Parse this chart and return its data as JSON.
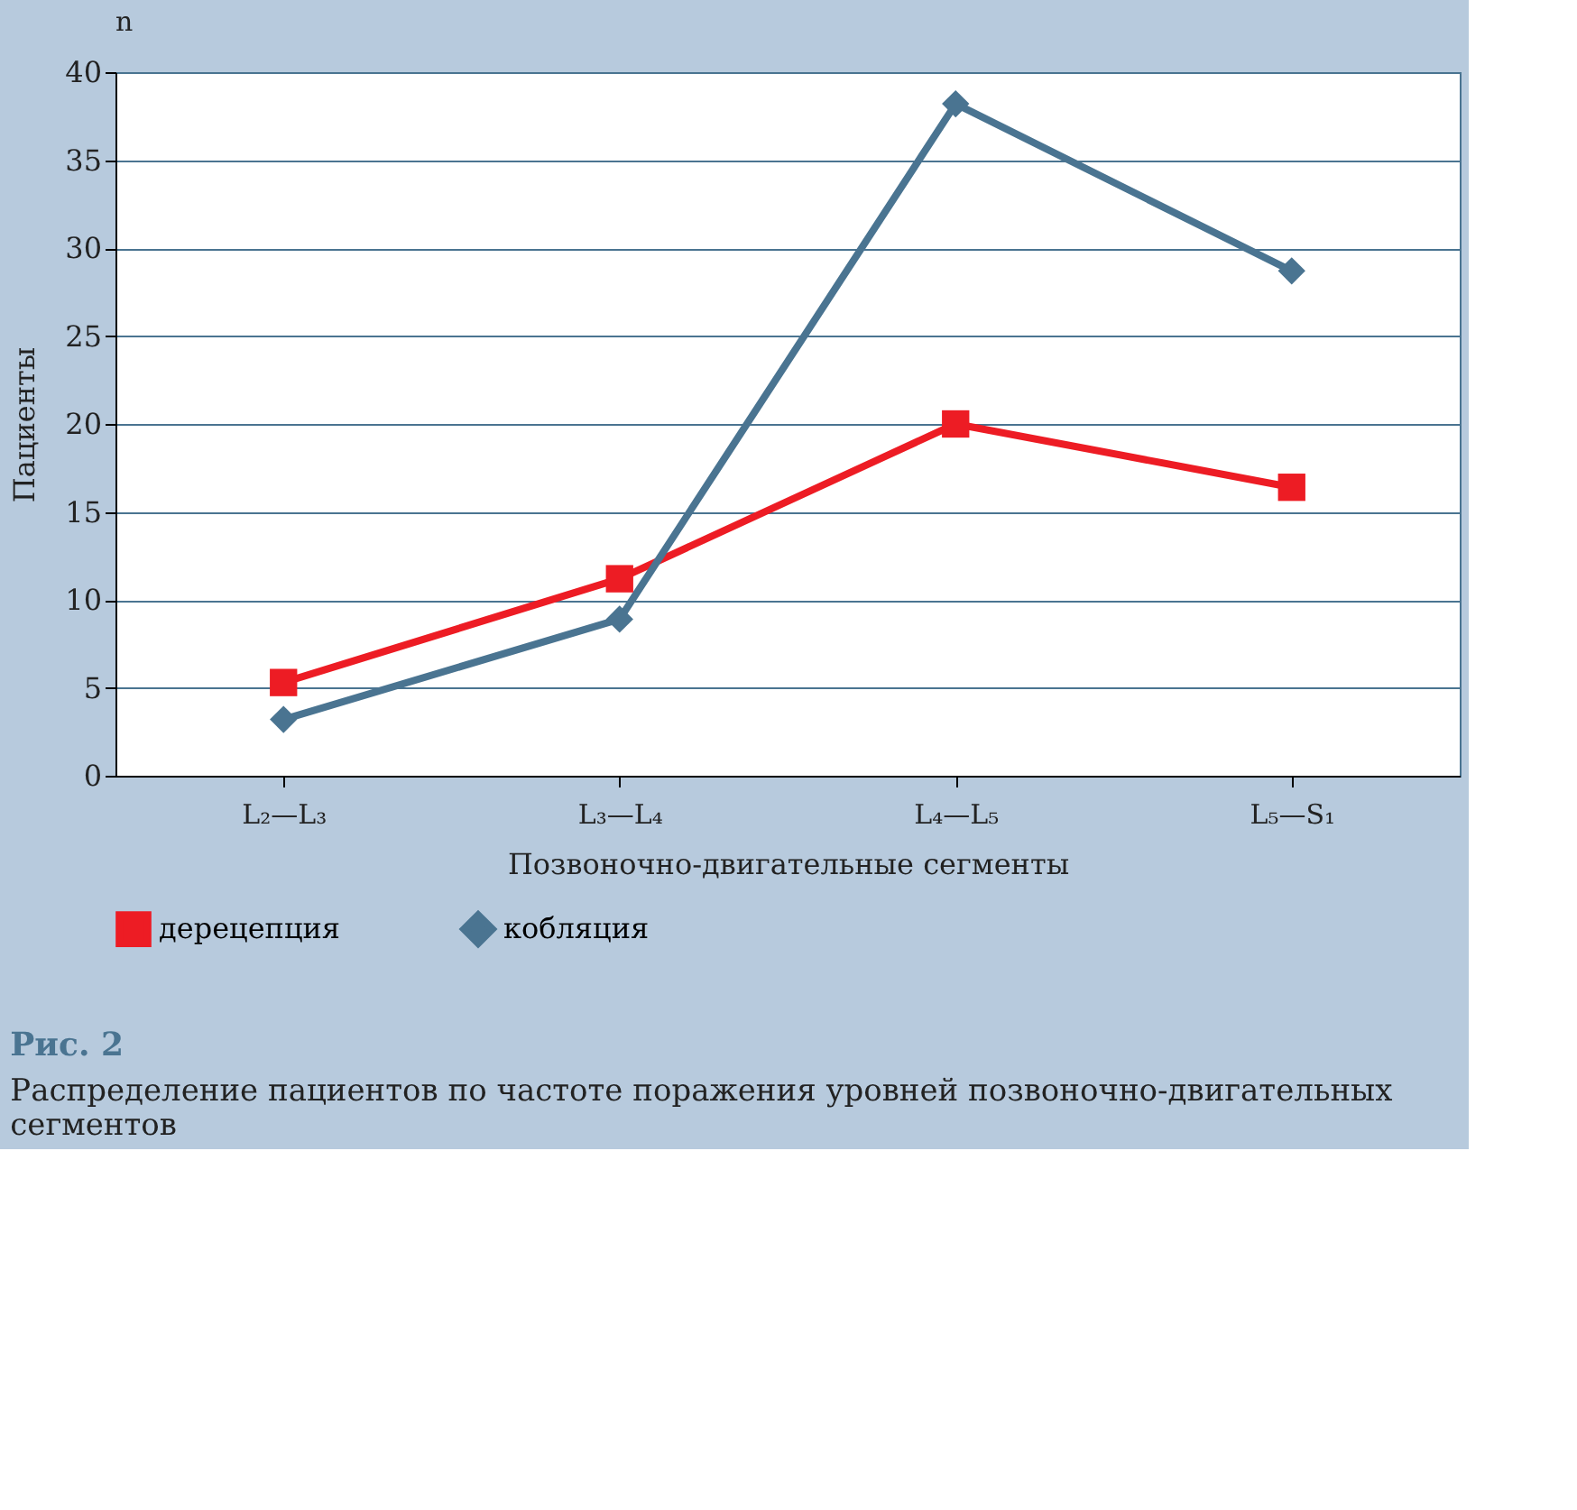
{
  "chart_data": {
    "type": "line",
    "title": "Рис. 2",
    "subtitle": "Распределение пациентов по частоте поражения уровней позвоночно-двигательных сегментов",
    "xlabel": "Позвоночно-двигательные сегменты",
    "ylabel": "Пациенты",
    "annotations": [
      "n"
    ],
    "categories": [
      "L₂—L₃",
      "L₃—L₄",
      "L₄—L₅",
      "L₅—S₁"
    ],
    "series": [
      {
        "name": "дерецепция",
        "color": "#ed1c24",
        "marker": "square",
        "values": [
          5.3,
          11.2,
          20,
          16.4
        ]
      },
      {
        "name": "кобляция",
        "color": "#4a7491",
        "marker": "diamond",
        "values": [
          3.2,
          8.9,
          38.2,
          28.7
        ]
      }
    ],
    "ylim": [
      0,
      40
    ],
    "yticks": [
      0,
      5,
      10,
      15,
      20,
      25,
      30,
      35,
      40
    ],
    "grid": "y",
    "legend": "bottom",
    "line_style": "solid"
  }
}
